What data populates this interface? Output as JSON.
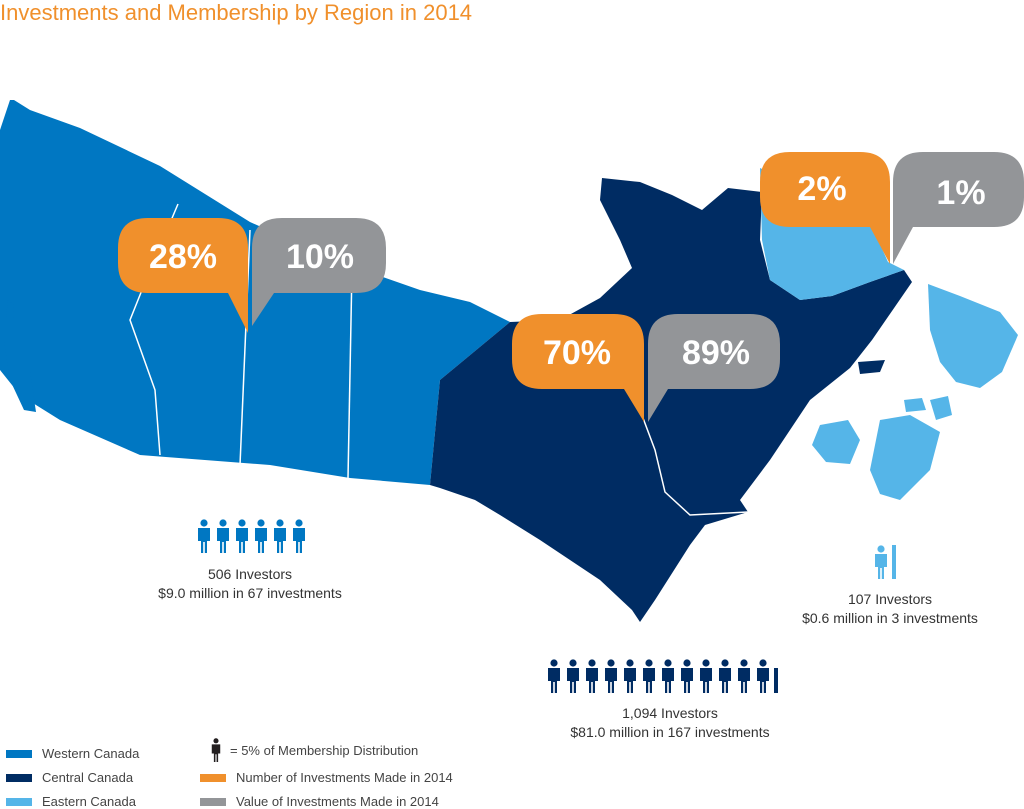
{
  "title": "Investments and Membership by Region in 2014",
  "colors": {
    "western": "#0077c2",
    "central": "#002c63",
    "eastern": "#55b5e8",
    "number": "#f0902c",
    "value": "#939598"
  },
  "regions": {
    "western": {
      "number_pct": "28%",
      "value_pct": "10%",
      "investors": "506 Investors",
      "detail": "$9.0 million in 67 investments"
    },
    "central": {
      "number_pct": "70%",
      "value_pct": "89%",
      "investors": "1,094 Investors",
      "detail": "$81.0 million in 167 investments"
    },
    "eastern": {
      "number_pct": "2%",
      "value_pct": "1%",
      "investors": "107 Investors",
      "detail": "$0.6 million in 3 investments"
    }
  },
  "legend": {
    "western": "Western Canada",
    "central": "Central Canada",
    "eastern": "Eastern Canada",
    "person": "= 5% of Membership Distribution",
    "number": "Number of Investments Made in 2014",
    "value": "Value of Investments Made in 2014"
  }
}
